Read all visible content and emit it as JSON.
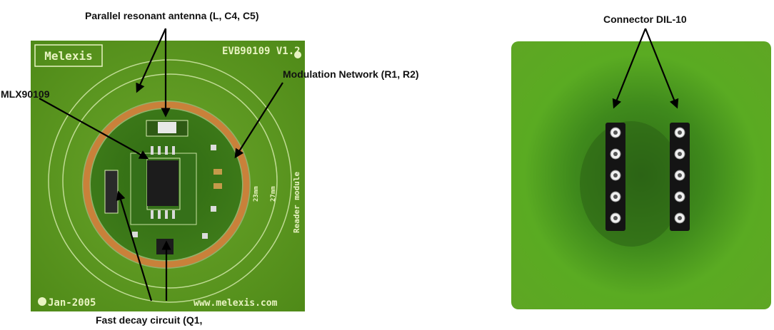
{
  "labels": {
    "antenna": "Parallel resonant antenna (L, C4, C5)",
    "modulation": "Modulation Network (R1, R2)",
    "chip": "MLX90109",
    "fast_decay": "Fast decay circuit (Q1,",
    "connector": "Connector DIL-10"
  },
  "board_front": {
    "brand": "Melexis",
    "model": "EVB90109  V1.2",
    "date": "Jan-2005",
    "website": "www.melexis.com",
    "side_text": "Reader module",
    "dim_23": "23mm",
    "dim_27": "27mm",
    "pcb_color": "#5f9a1f",
    "copper_color": "#c9813a"
  },
  "board_back": {
    "pin_rows": 5,
    "pin_columns": 2,
    "pcb_color": "#57a81f"
  }
}
